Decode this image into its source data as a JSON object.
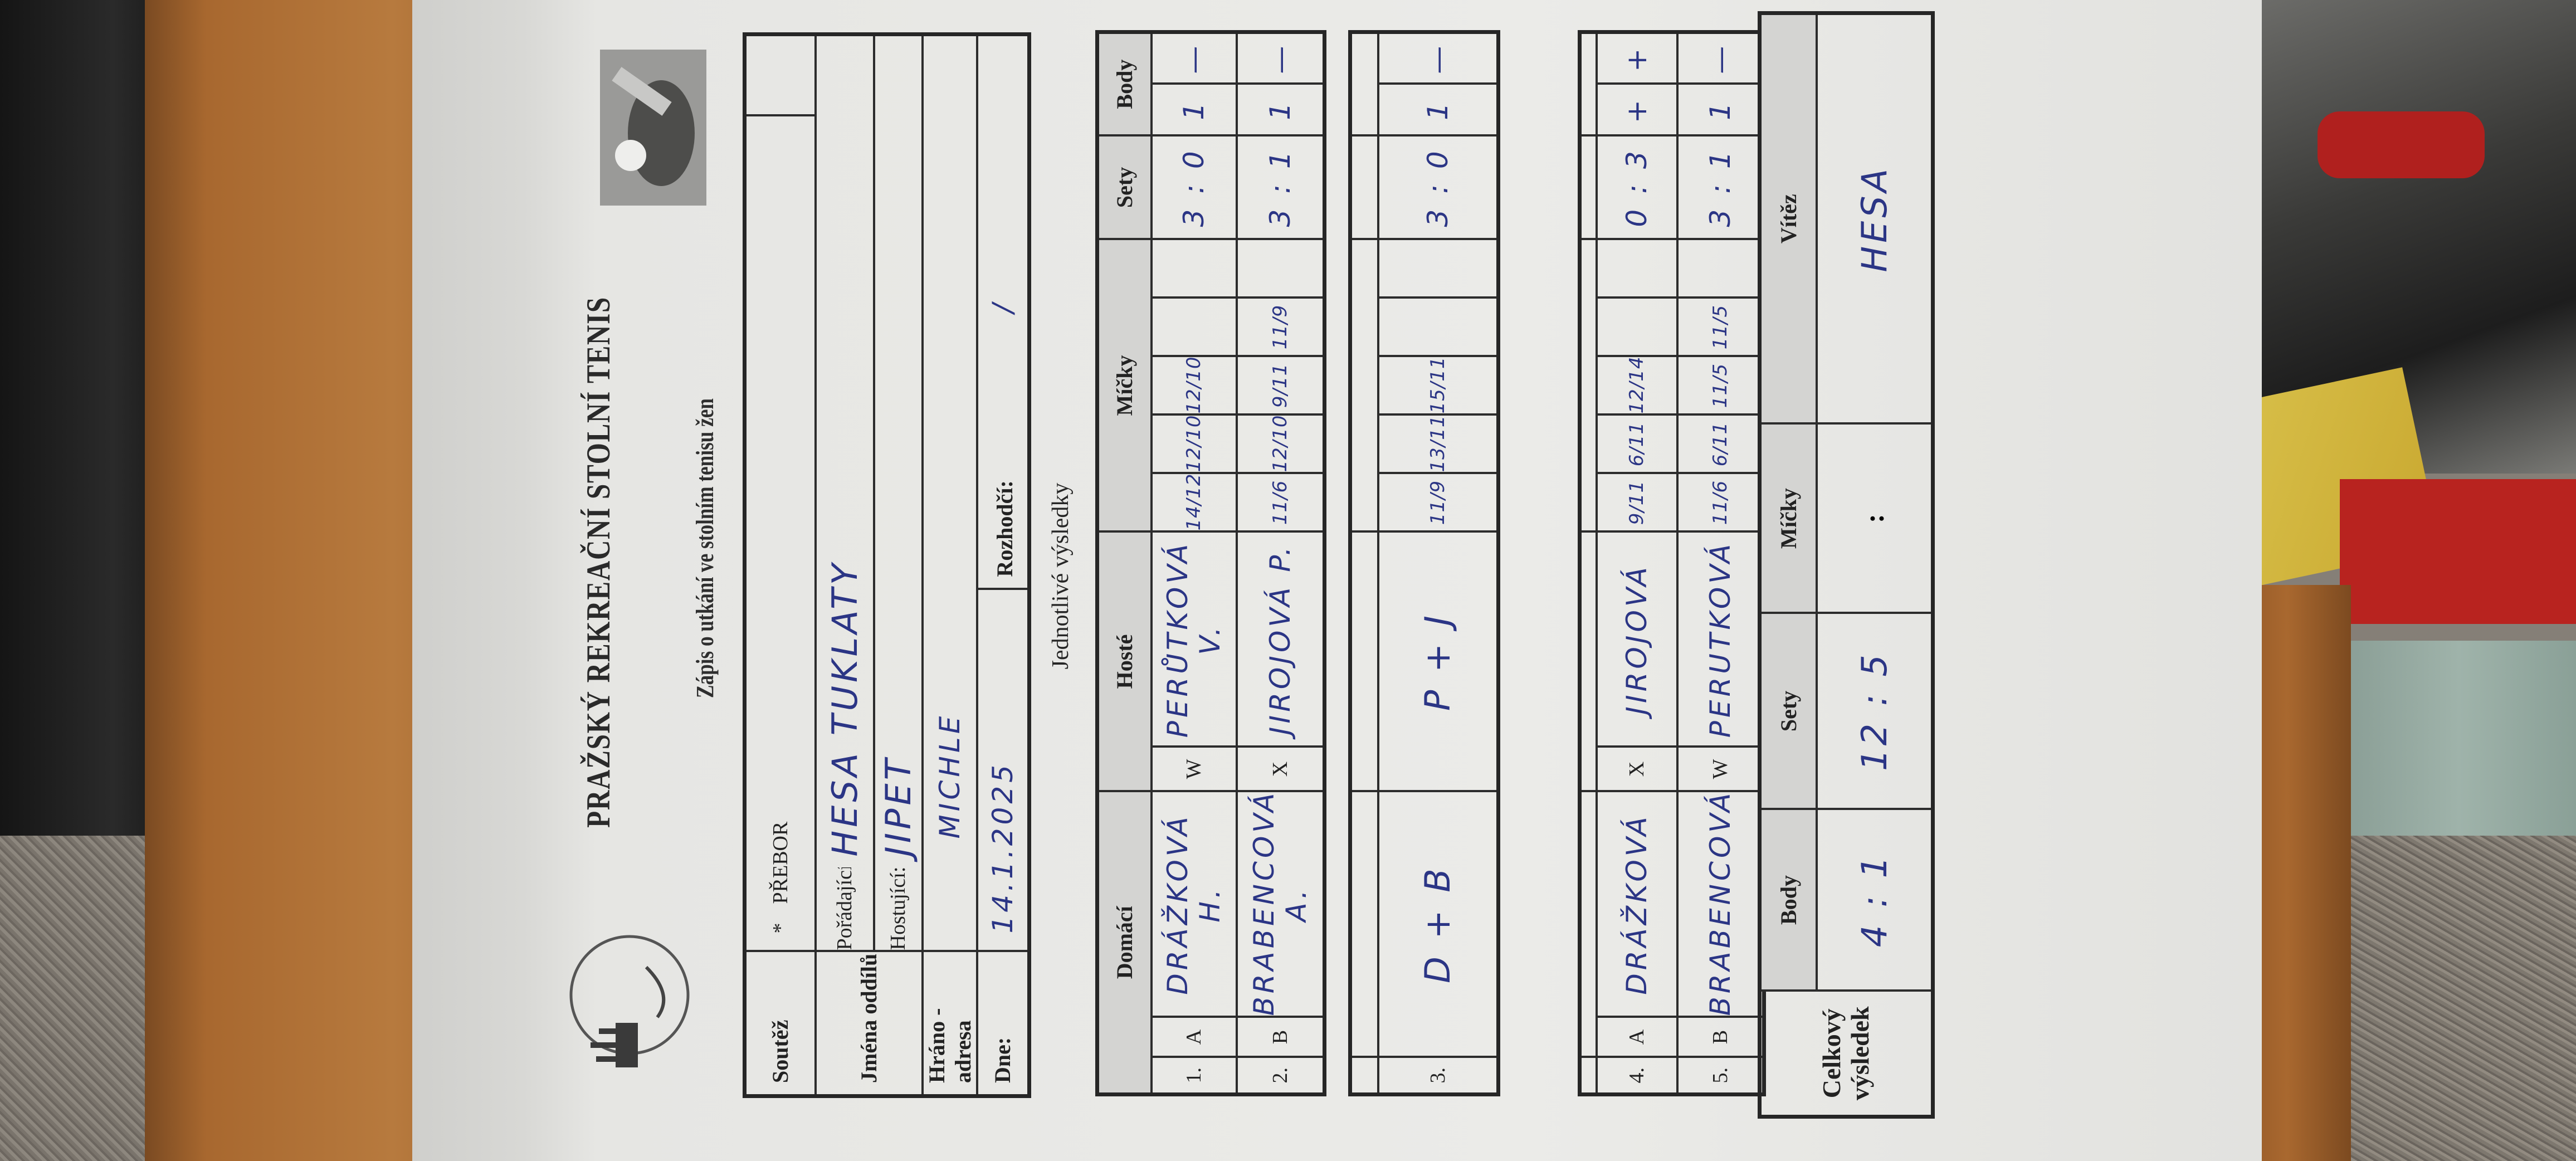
{
  "header": {
    "title": "PRAŽSKÝ REKREAČNÍ STOLNÍ TENIS",
    "subtitle": "Zápis o utkání ve stolním tenisu žen",
    "logo_text": "PRAŽSKÝ REKREAČNÍ STOLNÍ TENIS"
  },
  "info": {
    "soutez_label": "Soutěž",
    "soutez_marker": "*",
    "soutez_value": "PŘEBOR",
    "jmena_label": "Jména oddílů",
    "poradajici_label": "Pořádající:",
    "poradajici_value": "HESA TUKLATY",
    "hostujici_label": "Hostující:",
    "hostujici_value": "JIPET",
    "hrano_label": "Hráno - adresa",
    "hrano_value": "MICHLE",
    "dne_label": "Dne:",
    "dne_value": "14.1.2025",
    "rozhodci_label": "Rozhodčí:",
    "rozhodci_value": "/"
  },
  "results_heading": "Jednotlivé výsledky",
  "columns": {
    "domaci": "Domácí",
    "hoste": "Hosté",
    "micky": "Míčky",
    "sety": "Sety",
    "body": "Body"
  },
  "matches": [
    {
      "num": "1.",
      "letter": "A",
      "domaci": "DRÁŽKOVÁ H.",
      "side": "W",
      "hoste": "PERŮTKOVÁ V.",
      "micky": [
        "14/12",
        "12/10",
        "12/10",
        "",
        ""
      ],
      "sety": "3 : 0",
      "body": [
        "1",
        "—"
      ]
    },
    {
      "num": "2.",
      "letter": "B",
      "domaci": "BRABENCOVÁ A.",
      "side": "X",
      "hoste": "JIROJOVÁ P.",
      "micky": [
        "11/6",
        "12/10",
        "9/11",
        "11/9",
        ""
      ],
      "sety": "3 : 1",
      "body": [
        "1",
        "—"
      ]
    },
    {
      "num": "3.",
      "letter": "",
      "domaci": "D + B",
      "side": "",
      "hoste": "P + J",
      "micky": [
        "11/9",
        "13/11",
        "15/11",
        "",
        ""
      ],
      "sety": "3 : 0",
      "body": [
        "1",
        "—"
      ]
    },
    {
      "num": "4.",
      "letter": "A",
      "domaci": "DRÁŽKOVÁ",
      "side": "X",
      "hoste": "JIROJOVÁ",
      "micky": [
        "9/11",
        "6/11",
        "12/14",
        "",
        ""
      ],
      "sety": "0 : 3",
      "body": [
        "+",
        "+"
      ]
    },
    {
      "num": "5.",
      "letter": "B",
      "domaci": "BRABENCOVÁ",
      "side": "W",
      "hoste": "PERUTKOVÁ",
      "micky": [
        "11/6",
        "6/11",
        "11/5",
        "11/5",
        ""
      ],
      "sety": "3 : 1",
      "body": [
        "1",
        "—"
      ]
    }
  ],
  "summary": {
    "label": "Celkový výsledek",
    "body_label": "Body",
    "body_value": "4 : 1",
    "sety_label": "Sety",
    "sety_value": "12 : 5",
    "micky_label": "Míčky",
    "micky_value": ":",
    "vitez_label": "Vítěz",
    "vitez_value": "HESA"
  },
  "colors": {
    "ink": "#2b3585",
    "paper": "#ebebe8",
    "wood": "#a8682f"
  }
}
